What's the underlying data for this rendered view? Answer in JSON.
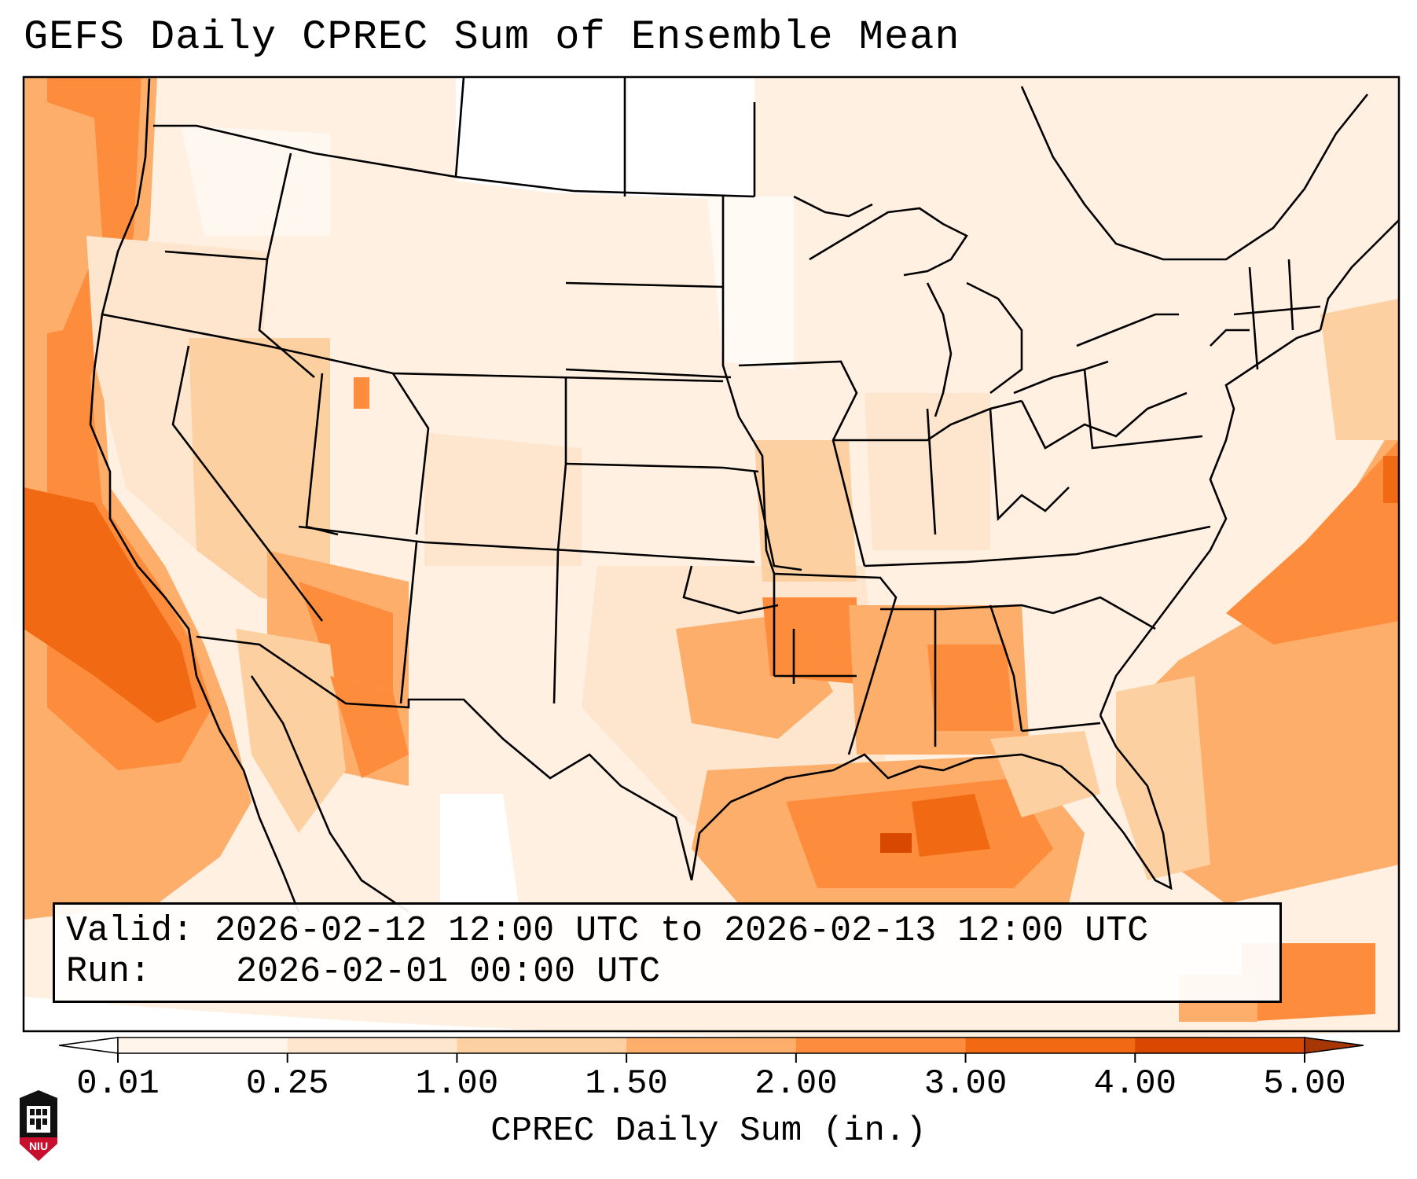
{
  "title": "GEFS Daily CPREC Sum of Ensemble Mean",
  "info": {
    "valid_label": "Valid:",
    "valid_value": "2026-02-12 12:00 UTC to 2026-02-13 12:00 UTC",
    "run_label": "Run:",
    "run_value": "2026-02-01 00:00 UTC"
  },
  "colorbar": {
    "label": "CPREC Daily Sum (in.)",
    "ticks": [
      "0.01",
      "0.25",
      "1.00",
      "1.50",
      "2.00",
      "3.00",
      "4.00",
      "5.00"
    ],
    "colors": [
      "#fff5eb",
      "#fee6ce",
      "#fdd0a2",
      "#fdae6b",
      "#fd8d3c",
      "#f16913",
      "#d94801",
      "#a63603"
    ],
    "under_color": "#ffffff",
    "over_color": "#a63603"
  },
  "logo": {
    "text": "NIU",
    "color": "#c8102e"
  },
  "map": {
    "projection": "Lambert conformal, CONUS",
    "basemap": "US states, Canada, Mexico, Caribbean outlines"
  }
}
